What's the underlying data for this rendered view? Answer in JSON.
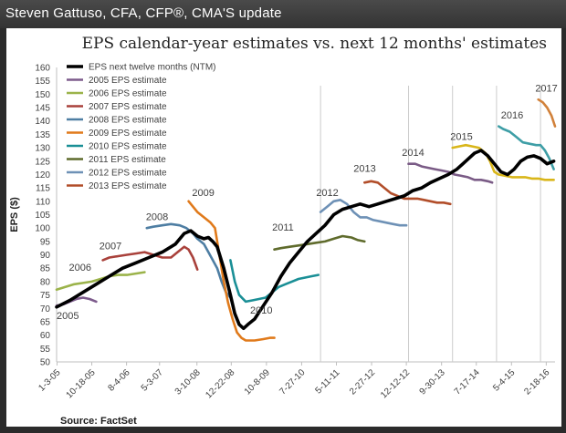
{
  "header": {
    "title": "Steven Gattuso, CFA, CFP®, CMA'S update"
  },
  "source": "Source: FactSet",
  "colors": {
    "ntm": "#000000",
    "e2005": "#7d5b8c",
    "e2006": "#9bb34a",
    "e2007": "#a9413b",
    "e2008": "#4e7ea3",
    "e2009": "#e07a1b",
    "e2010": "#1a8f96",
    "e2011": "#5f6b2c",
    "e2012": "#6e91b6",
    "e2013": "#b24e2a",
    "e2014": "#7a5b86",
    "e2015": "#d9b61a",
    "e2016": "#3e9ea6",
    "e2017": "#d1813a",
    "axis": "#bfbfbf",
    "text": "#404040",
    "title": "#222222",
    "divider": "#cccccc"
  },
  "chart_data": {
    "type": "line",
    "title": "EPS calendar-year estimates vs. next 12 months' estimates",
    "ylabel": "EPS ($)",
    "xlabel": "",
    "ylim": [
      50,
      160
    ],
    "y_ticks": [
      50,
      55,
      60,
      65,
      70,
      75,
      80,
      85,
      90,
      95,
      100,
      105,
      110,
      115,
      120,
      125,
      130,
      135,
      140,
      145,
      150,
      155,
      160
    ],
    "x_range": [
      2005.0,
      2016.33
    ],
    "x_ticks": [
      {
        "label": "1-3-05",
        "x": 2005.01
      },
      {
        "label": "10-18-05",
        "x": 2005.8
      },
      {
        "label": "8-4-06",
        "x": 2006.59
      },
      {
        "label": "5-3-07",
        "x": 2007.34
      },
      {
        "label": "3-10-08",
        "x": 2008.19
      },
      {
        "label": "12-22-08",
        "x": 2008.97
      },
      {
        "label": "10-8-09",
        "x": 2009.77
      },
      {
        "label": "7-27-10",
        "x": 2010.57
      },
      {
        "label": "5-11-11",
        "x": 2011.36
      },
      {
        "label": "2-27-12",
        "x": 2012.16
      },
      {
        "label": "12-12-12",
        "x": 2012.95
      },
      {
        "label": "9-30-13",
        "x": 2013.75
      },
      {
        "label": "7-17-14",
        "x": 2014.54
      },
      {
        "label": "5-4-15",
        "x": 2015.34
      },
      {
        "label": "2-18-16",
        "x": 2016.13
      }
    ],
    "dividers": [
      2011.0,
      2013.0,
      2014.0,
      2015.0,
      2016.0
    ],
    "legend": [
      {
        "label": "EPS next twelve months (NTM)",
        "color": "ntm"
      },
      {
        "label": "2005 EPS estimate",
        "color": "e2005"
      },
      {
        "label": "2006 EPS estimate",
        "color": "e2006"
      },
      {
        "label": "2007 EPS estimate",
        "color": "e2007"
      },
      {
        "label": "2008 EPS estimate",
        "color": "e2008"
      },
      {
        "label": "2009 EPS estimate",
        "color": "e2009"
      },
      {
        "label": "2010 EPS estimate",
        "color": "e2010"
      },
      {
        "label": "2011 EPS estimate",
        "color": "e2011"
      },
      {
        "label": "2012 EPS estimate",
        "color": "e2012"
      },
      {
        "label": "2013 EPS estimate",
        "color": "e2013"
      }
    ],
    "series": [
      {
        "name": "EPS next twelve months (NTM)",
        "color": "ntm",
        "width": 3.6,
        "points": [
          [
            2005.0,
            70.5
          ],
          [
            2005.3,
            73
          ],
          [
            2005.6,
            76
          ],
          [
            2005.9,
            79
          ],
          [
            2006.2,
            82
          ],
          [
            2006.5,
            85
          ],
          [
            2006.8,
            87
          ],
          [
            2007.1,
            89
          ],
          [
            2007.4,
            91
          ],
          [
            2007.7,
            94
          ],
          [
            2007.9,
            98
          ],
          [
            2008.05,
            99
          ],
          [
            2008.2,
            97
          ],
          [
            2008.35,
            96
          ],
          [
            2008.45,
            96.5
          ],
          [
            2008.55,
            95
          ],
          [
            2008.65,
            93
          ],
          [
            2008.8,
            85
          ],
          [
            2008.95,
            75
          ],
          [
            2009.05,
            68
          ],
          [
            2009.15,
            64
          ],
          [
            2009.25,
            62.5
          ],
          [
            2009.35,
            64
          ],
          [
            2009.5,
            66
          ],
          [
            2009.7,
            71
          ],
          [
            2009.9,
            76
          ],
          [
            2010.1,
            82
          ],
          [
            2010.3,
            87
          ],
          [
            2010.5,
            91
          ],
          [
            2010.7,
            95
          ],
          [
            2010.9,
            98
          ],
          [
            2011.1,
            101
          ],
          [
            2011.3,
            105
          ],
          [
            2011.5,
            107
          ],
          [
            2011.7,
            108
          ],
          [
            2011.9,
            109
          ],
          [
            2012.1,
            108
          ],
          [
            2012.3,
            109
          ],
          [
            2012.5,
            110
          ],
          [
            2012.7,
            111
          ],
          [
            2012.9,
            112
          ],
          [
            2013.1,
            114
          ],
          [
            2013.3,
            115
          ],
          [
            2013.5,
            117
          ],
          [
            2013.7,
            118.5
          ],
          [
            2013.9,
            120
          ],
          [
            2014.1,
            122
          ],
          [
            2014.3,
            125
          ],
          [
            2014.5,
            128
          ],
          [
            2014.65,
            129
          ],
          [
            2014.8,
            127
          ],
          [
            2014.9,
            125
          ],
          [
            2015.0,
            123
          ],
          [
            2015.1,
            121
          ],
          [
            2015.25,
            120
          ],
          [
            2015.4,
            122
          ],
          [
            2015.55,
            125
          ],
          [
            2015.7,
            126.5
          ],
          [
            2015.85,
            127
          ],
          [
            2016.0,
            126
          ],
          [
            2016.15,
            124
          ],
          [
            2016.3,
            125
          ]
        ]
      },
      {
        "name": "2005 EPS estimate",
        "color": "e2005",
        "width": 2.6,
        "points": [
          [
            2005.0,
            71
          ],
          [
            2005.15,
            71.5
          ],
          [
            2005.3,
            72.5
          ],
          [
            2005.45,
            73.5
          ],
          [
            2005.6,
            74
          ],
          [
            2005.75,
            73.5
          ],
          [
            2005.9,
            72.5
          ]
        ]
      },
      {
        "name": "2006 EPS estimate",
        "color": "e2006",
        "width": 2.6,
        "points": [
          [
            2005.0,
            77
          ],
          [
            2005.2,
            78
          ],
          [
            2005.4,
            79
          ],
          [
            2005.6,
            79.5
          ],
          [
            2005.8,
            80
          ],
          [
            2006.0,
            81
          ],
          [
            2006.2,
            82
          ],
          [
            2006.4,
            82.5
          ],
          [
            2006.6,
            82.5
          ],
          [
            2006.8,
            83
          ],
          [
            2007.0,
            83.5
          ]
        ]
      },
      {
        "name": "2007 EPS estimate",
        "color": "e2007",
        "width": 2.6,
        "points": [
          [
            2006.05,
            88
          ],
          [
            2006.2,
            89
          ],
          [
            2006.4,
            89.5
          ],
          [
            2006.6,
            90
          ],
          [
            2006.8,
            90.5
          ],
          [
            2007.0,
            91
          ],
          [
            2007.2,
            90
          ],
          [
            2007.4,
            89
          ],
          [
            2007.6,
            89
          ],
          [
            2007.75,
            91
          ],
          [
            2007.9,
            93
          ],
          [
            2008.0,
            92
          ],
          [
            2008.1,
            89
          ],
          [
            2008.2,
            84.5
          ]
        ]
      },
      {
        "name": "2008 EPS estimate",
        "color": "e2008",
        "width": 2.6,
        "points": [
          [
            2007.05,
            100
          ],
          [
            2007.2,
            100.5
          ],
          [
            2007.4,
            101
          ],
          [
            2007.6,
            101.5
          ],
          [
            2007.8,
            101
          ],
          [
            2007.95,
            100
          ],
          [
            2008.1,
            98
          ],
          [
            2008.2,
            96
          ],
          [
            2008.35,
            94
          ],
          [
            2008.45,
            91
          ],
          [
            2008.55,
            88
          ],
          [
            2008.65,
            85
          ],
          [
            2008.75,
            80
          ],
          [
            2008.85,
            76
          ],
          [
            2008.95,
            74
          ]
        ]
      },
      {
        "name": "2009 EPS estimate",
        "color": "e2009",
        "width": 2.6,
        "points": [
          [
            2008.0,
            110
          ],
          [
            2008.1,
            108
          ],
          [
            2008.2,
            106
          ],
          [
            2008.35,
            104
          ],
          [
            2008.5,
            102
          ],
          [
            2008.6,
            100
          ],
          [
            2008.7,
            90
          ],
          [
            2008.8,
            80
          ],
          [
            2008.9,
            72
          ],
          [
            2009.0,
            66
          ],
          [
            2009.1,
            61
          ],
          [
            2009.2,
            59
          ],
          [
            2009.3,
            58
          ],
          [
            2009.5,
            58
          ],
          [
            2009.7,
            58.5
          ],
          [
            2009.85,
            59
          ],
          [
            2009.95,
            59
          ]
        ]
      },
      {
        "name": "2010 EPS estimate",
        "color": "e2010",
        "width": 2.6,
        "points": [
          [
            2008.95,
            88
          ],
          [
            2009.05,
            80
          ],
          [
            2009.15,
            75
          ],
          [
            2009.3,
            72.5
          ],
          [
            2009.45,
            73
          ],
          [
            2009.6,
            73.5
          ],
          [
            2009.75,
            74
          ],
          [
            2009.9,
            76
          ],
          [
            2010.05,
            78
          ],
          [
            2010.2,
            79
          ],
          [
            2010.35,
            80
          ],
          [
            2010.5,
            81
          ],
          [
            2010.65,
            81.5
          ],
          [
            2010.8,
            82
          ],
          [
            2010.95,
            82.5
          ]
        ]
      },
      {
        "name": "2011 EPS estimate",
        "color": "e2011",
        "width": 2.6,
        "points": [
          [
            2009.95,
            92
          ],
          [
            2010.1,
            92.5
          ],
          [
            2010.3,
            93
          ],
          [
            2010.5,
            93.5
          ],
          [
            2010.7,
            94
          ],
          [
            2010.9,
            94.5
          ],
          [
            2011.1,
            95
          ],
          [
            2011.3,
            96
          ],
          [
            2011.5,
            97
          ],
          [
            2011.7,
            96.5
          ],
          [
            2011.85,
            95.5
          ],
          [
            2012.0,
            95
          ]
        ]
      },
      {
        "name": "2012 EPS estimate",
        "color": "e2012",
        "width": 2.6,
        "points": [
          [
            2011.0,
            106
          ],
          [
            2011.15,
            108
          ],
          [
            2011.3,
            110
          ],
          [
            2011.45,
            110.5
          ],
          [
            2011.6,
            109
          ],
          [
            2011.75,
            106
          ],
          [
            2011.9,
            104
          ],
          [
            2012.05,
            104
          ],
          [
            2012.2,
            103
          ],
          [
            2012.35,
            102.5
          ],
          [
            2012.5,
            102
          ],
          [
            2012.65,
            101.5
          ],
          [
            2012.8,
            101
          ],
          [
            2012.95,
            101
          ]
        ]
      },
      {
        "name": "2013 EPS estimate",
        "color": "e2013",
        "width": 2.6,
        "points": [
          [
            2012.0,
            117
          ],
          [
            2012.15,
            117.5
          ],
          [
            2012.3,
            117
          ],
          [
            2012.45,
            115
          ],
          [
            2012.6,
            113
          ],
          [
            2012.75,
            112
          ],
          [
            2012.9,
            111
          ],
          [
            2013.05,
            111
          ],
          [
            2013.2,
            111
          ],
          [
            2013.35,
            110.5
          ],
          [
            2013.5,
            110
          ],
          [
            2013.65,
            109.5
          ],
          [
            2013.8,
            109.5
          ],
          [
            2013.95,
            109
          ]
        ]
      },
      {
        "name": "2014 EPS estimate",
        "color": "e2014",
        "width": 2.6,
        "points": [
          [
            2013.0,
            124
          ],
          [
            2013.15,
            124
          ],
          [
            2013.3,
            123
          ],
          [
            2013.45,
            122.5
          ],
          [
            2013.6,
            122
          ],
          [
            2013.75,
            121.5
          ],
          [
            2013.9,
            121
          ],
          [
            2014.05,
            120
          ],
          [
            2014.2,
            119.5
          ],
          [
            2014.35,
            119
          ],
          [
            2014.5,
            118
          ],
          [
            2014.65,
            118
          ],
          [
            2014.8,
            117.5
          ],
          [
            2014.9,
            117
          ]
        ]
      },
      {
        "name": "2015 EPS estimate",
        "color": "e2015",
        "width": 2.6,
        "points": [
          [
            2014.0,
            130
          ],
          [
            2014.15,
            130.5
          ],
          [
            2014.3,
            131
          ],
          [
            2014.45,
            130.5
          ],
          [
            2014.6,
            130
          ],
          [
            2014.75,
            128
          ],
          [
            2014.85,
            125
          ],
          [
            2014.95,
            121
          ],
          [
            2015.05,
            120
          ],
          [
            2015.2,
            119.5
          ],
          [
            2015.35,
            119
          ],
          [
            2015.5,
            119
          ],
          [
            2015.65,
            119
          ],
          [
            2015.8,
            118.5
          ],
          [
            2015.95,
            118.5
          ],
          [
            2016.1,
            118
          ],
          [
            2016.3,
            118
          ]
        ]
      },
      {
        "name": "2016 EPS estimate",
        "color": "e2016",
        "width": 2.6,
        "points": [
          [
            2015.05,
            138
          ],
          [
            2015.15,
            137
          ],
          [
            2015.3,
            136
          ],
          [
            2015.45,
            134
          ],
          [
            2015.6,
            132
          ],
          [
            2015.75,
            131.5
          ],
          [
            2015.9,
            131
          ],
          [
            2016.0,
            131
          ],
          [
            2016.1,
            129
          ],
          [
            2016.2,
            126
          ],
          [
            2016.3,
            122
          ]
        ]
      },
      {
        "name": "2017 EPS estimate",
        "color": "e2017",
        "width": 2.6,
        "points": [
          [
            2015.95,
            148
          ],
          [
            2016.05,
            147
          ],
          [
            2016.15,
            145
          ],
          [
            2016.25,
            142
          ],
          [
            2016.33,
            138
          ]
        ]
      }
    ],
    "annotations": [
      {
        "text": "2005",
        "x": 2005.0,
        "y": 66
      },
      {
        "text": "2006",
        "x": 2005.28,
        "y": 84
      },
      {
        "text": "2007",
        "x": 2005.97,
        "y": 92
      },
      {
        "text": "2008",
        "x": 2007.03,
        "y": 103
      },
      {
        "text": "2009",
        "x": 2008.08,
        "y": 112
      },
      {
        "text": "2010",
        "x": 2009.4,
        "y": 68
      },
      {
        "text": "2011",
        "x": 2009.9,
        "y": 99
      },
      {
        "text": "2012",
        "x": 2010.9,
        "y": 112
      },
      {
        "text": "2013",
        "x": 2011.75,
        "y": 121
      },
      {
        "text": "2014",
        "x": 2012.85,
        "y": 127
      },
      {
        "text": "2015",
        "x": 2013.95,
        "y": 133
      },
      {
        "text": "2016",
        "x": 2015.1,
        "y": 141
      },
      {
        "text": "2017",
        "x": 2015.88,
        "y": 151
      }
    ]
  }
}
